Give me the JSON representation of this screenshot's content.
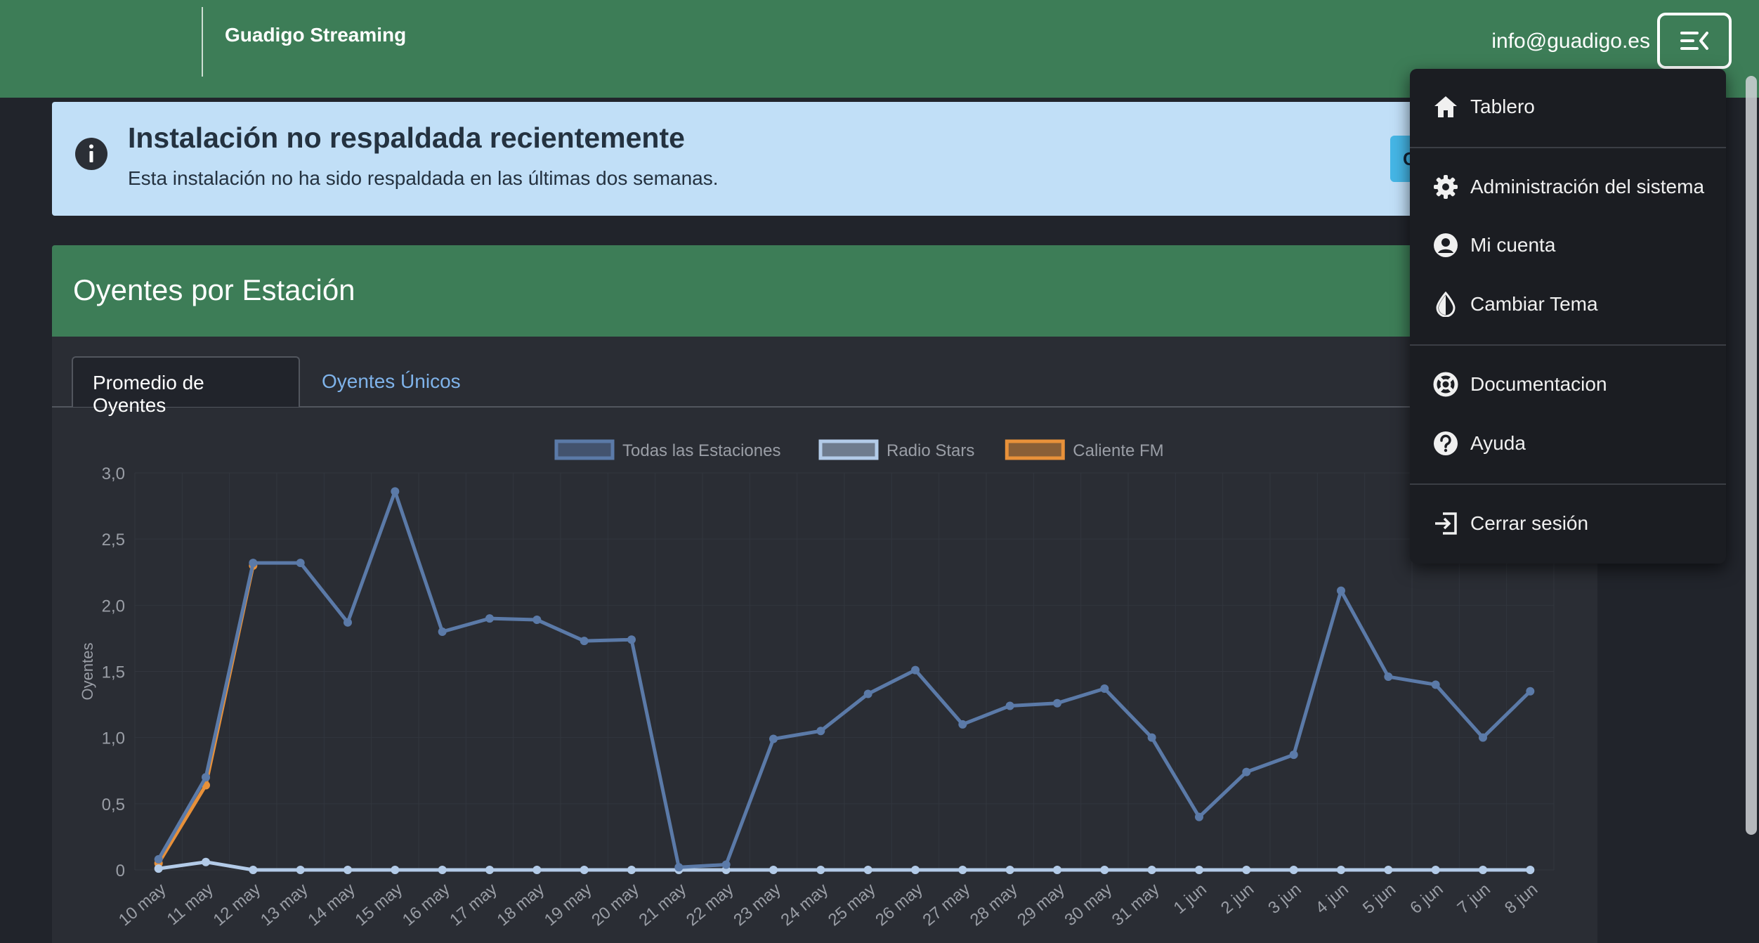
{
  "topbar": {
    "brand": "Guadigo Streaming",
    "user_email": "info@guadigo.es",
    "menu_icon": "menu-collapse-icon",
    "accent_color": "#3d7d57"
  },
  "alert": {
    "title": "Instalación no respaldada recientemente",
    "text": "Esta instalación no ha sido respaldada en las últimas dos semanas.",
    "button_label": "C",
    "icon": "info-icon"
  },
  "card": {
    "title": "Oyentes por Estación",
    "tabs": [
      {
        "label": "Promedio de Oyentes",
        "active": true
      },
      {
        "label": "Oyentes Únicos",
        "active": false
      }
    ]
  },
  "menu": {
    "items": [
      {
        "label": "Tablero",
        "icon": "home-icon"
      },
      {
        "label": "Administración del sistema",
        "icon": "gear-icon"
      },
      {
        "label": "Mi cuenta",
        "icon": "account-icon"
      },
      {
        "label": "Cambiar Tema",
        "icon": "theme-drop-icon"
      },
      {
        "label": "Documentacion",
        "icon": "lifebuoy-icon"
      },
      {
        "label": "Ayuda",
        "icon": "help-icon"
      },
      {
        "label": "Cerrar sesión",
        "icon": "logout-icon"
      }
    ]
  },
  "chart_data": {
    "type": "line",
    "title": "",
    "xlabel": "",
    "ylabel": "Oyentes",
    "ylim": [
      0,
      3
    ],
    "yticks": [
      "0",
      "0,5",
      "1,0",
      "1,5",
      "2,0",
      "2,5",
      "3,0"
    ],
    "grid": true,
    "legend_position": "top",
    "categories": [
      "10 may",
      "11 may",
      "12 may",
      "13 may",
      "14 may",
      "15 may",
      "16 may",
      "17 may",
      "18 may",
      "19 may",
      "20 may",
      "21 may",
      "22 may",
      "23 may",
      "24 may",
      "25 may",
      "26 may",
      "27 may",
      "28 may",
      "29 may",
      "30 may",
      "31 may",
      "1 jun",
      "2 jun",
      "3 jun",
      "4 jun",
      "5 jun",
      "6 jun",
      "7 jun",
      "8 jun"
    ],
    "series": [
      {
        "name": "Todas las Estaciones",
        "color": "#5b7aa8",
        "values": [
          0.08,
          0.7,
          2.32,
          2.32,
          1.87,
          2.86,
          1.8,
          1.9,
          1.89,
          1.73,
          1.74,
          0.02,
          0.04,
          0.99,
          1.05,
          1.33,
          1.51,
          1.1,
          1.24,
          1.26,
          1.37,
          1.0,
          0.4,
          0.74,
          0.87,
          2.11,
          1.46,
          1.4,
          1.0,
          1.35
        ]
      },
      {
        "name": "Radio Stars",
        "color": "#b3cbe8",
        "values": [
          0.01,
          0.06,
          0,
          0,
          0,
          0,
          0,
          0,
          0,
          0,
          0,
          0,
          0,
          0,
          0,
          0,
          0,
          0,
          0,
          0,
          0,
          0,
          0,
          0,
          0,
          0,
          0,
          0,
          0,
          0
        ]
      },
      {
        "name": "Caliente FM",
        "color": "#e8913a",
        "values": [
          0.05,
          0.64,
          2.3,
          null,
          null,
          null,
          null,
          null,
          null,
          null,
          null,
          null,
          null,
          null,
          null,
          null,
          null,
          null,
          null,
          null,
          null,
          null,
          null,
          null,
          null,
          null,
          null,
          null,
          null,
          null
        ]
      }
    ]
  }
}
